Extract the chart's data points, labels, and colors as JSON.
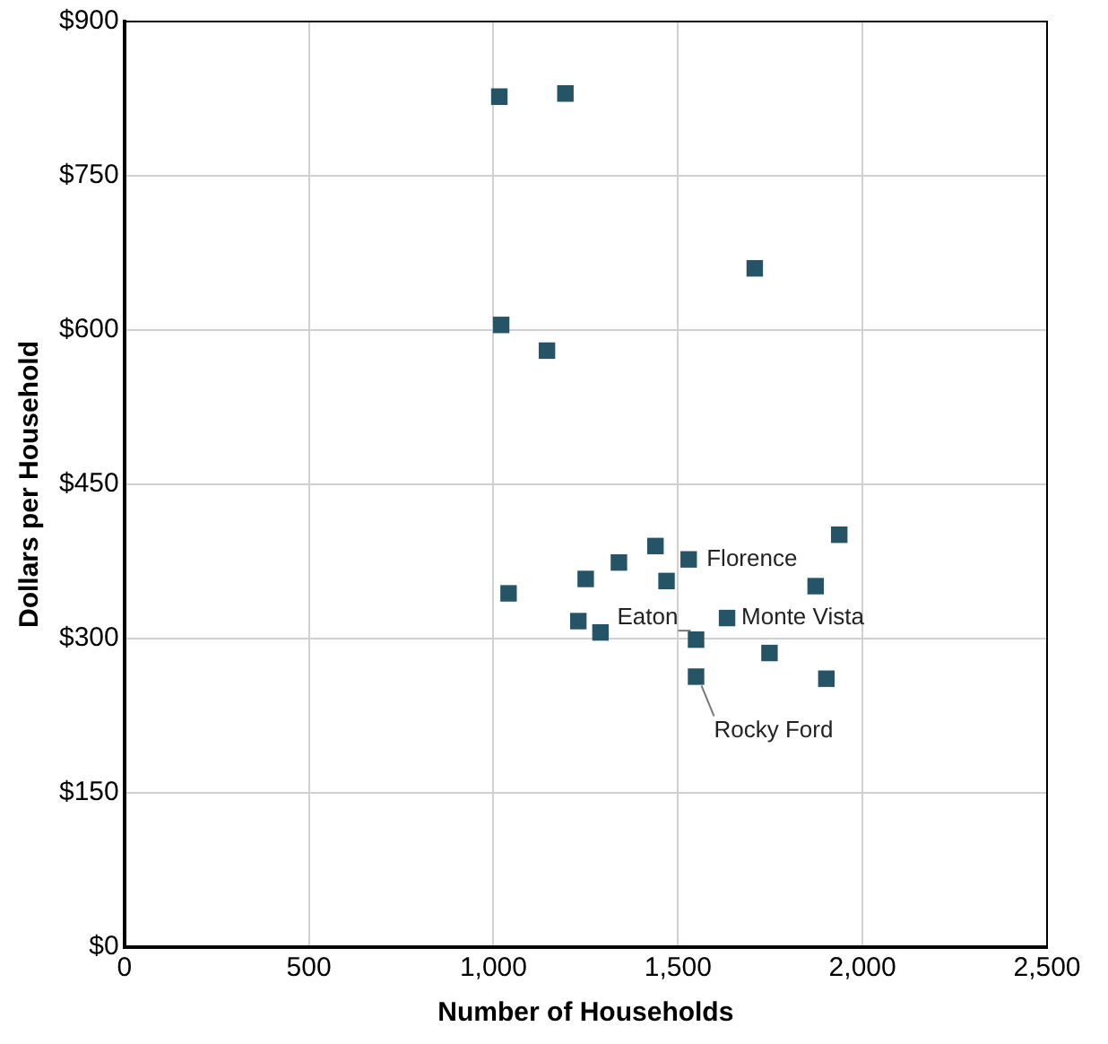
{
  "chart_data": {
    "type": "scatter",
    "xlabel": "Number of Households",
    "ylabel": "Dollars per Household",
    "x": [
      1016,
      1195,
      1708,
      1021,
      1145,
      1041,
      1250,
      1340,
      1439,
      1529,
      1469,
      1230,
      1290,
      1549,
      1633,
      1748,
      1549,
      1873,
      1937,
      1902
    ],
    "series": [
      {
        "color": "#245466",
        "values": [
          827,
          830,
          660,
          605,
          580,
          344,
          358,
          374,
          390,
          377,
          356,
          317,
          306,
          299,
          320,
          286,
          263,
          351,
          401,
          261
        ]
      }
    ],
    "xlim": [
      0,
      2500
    ],
    "xticks": [
      0,
      500,
      {
        "value": 1000,
        "label": "1,000"
      },
      {
        "value": 1500,
        "label": "1,500"
      },
      {
        "value": 2000,
        "label": "2,000"
      },
      {
        "value": 2500,
        "label": "2,500"
      }
    ],
    "ylim": [
      0,
      900
    ],
    "yticks": [
      {
        "value": 0,
        "label": "$0"
      },
      {
        "value": 150,
        "label": "$150"
      },
      {
        "value": 300,
        "label": "$300"
      },
      {
        "value": 450,
        "label": "$450"
      },
      {
        "value": 600,
        "label": "$600"
      },
      {
        "value": 750,
        "label": "$750"
      },
      {
        "value": 900,
        "label": "$900"
      }
    ],
    "grid": true,
    "legend": false,
    "marker": "square",
    "annotations": [
      {
        "text": "Florence",
        "x": 1529,
        "y": 377
      },
      {
        "text": "Eaton",
        "x": 1549,
        "y": 299
      },
      {
        "text": "Monte Vista",
        "x": 1633,
        "y": 320
      },
      {
        "text": "Rocky Ford",
        "x": 1549,
        "y": 263
      }
    ]
  }
}
